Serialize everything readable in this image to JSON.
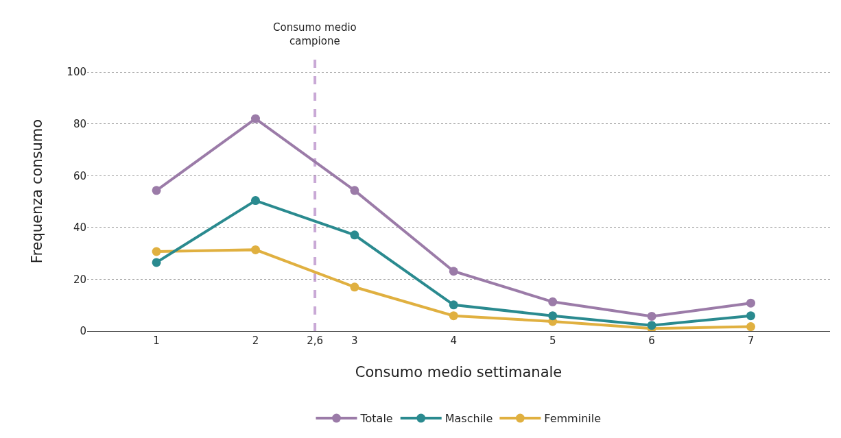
{
  "chart_data": {
    "type": "line",
    "xlabel": "Consumo medio settimanale",
    "ylabel": "Frequenza consumo",
    "x": [
      1,
      2,
      3,
      4,
      5,
      6,
      7
    ],
    "series": [
      {
        "name": "Totale",
        "color": "#9b7ba8",
        "values": [
          54.3,
          82,
          54.3,
          23.1,
          11.3,
          5.7,
          10.8
        ]
      },
      {
        "name": "Maschile",
        "color": "#2a8a8f",
        "values": [
          26.5,
          50.4,
          37.1,
          10.1,
          5.9,
          2.2,
          5.9
        ]
      },
      {
        "name": "Femminile",
        "color": "#e0b040",
        "values": [
          30.7,
          31.4,
          17,
          5.9,
          3.7,
          1,
          1.7
        ]
      }
    ],
    "xlim": [
      0.3,
      7.8
    ],
    "xticks": [
      1,
      2,
      {
        "value": 2.6,
        "label": "2,6"
      },
      3,
      4,
      5,
      6,
      7
    ],
    "ylim": [
      0,
      108
    ],
    "yticks": [
      0,
      20,
      40,
      60,
      80,
      100
    ],
    "ref_lines": [
      {
        "axis": "x",
        "value": 2.6,
        "label": "Consumo medio\ncampione",
        "color": "#c9a9d6",
        "line_style": "dashed"
      }
    ],
    "grid": "y",
    "legend": "bottom",
    "marker": "circle",
    "line_style": "solid"
  }
}
